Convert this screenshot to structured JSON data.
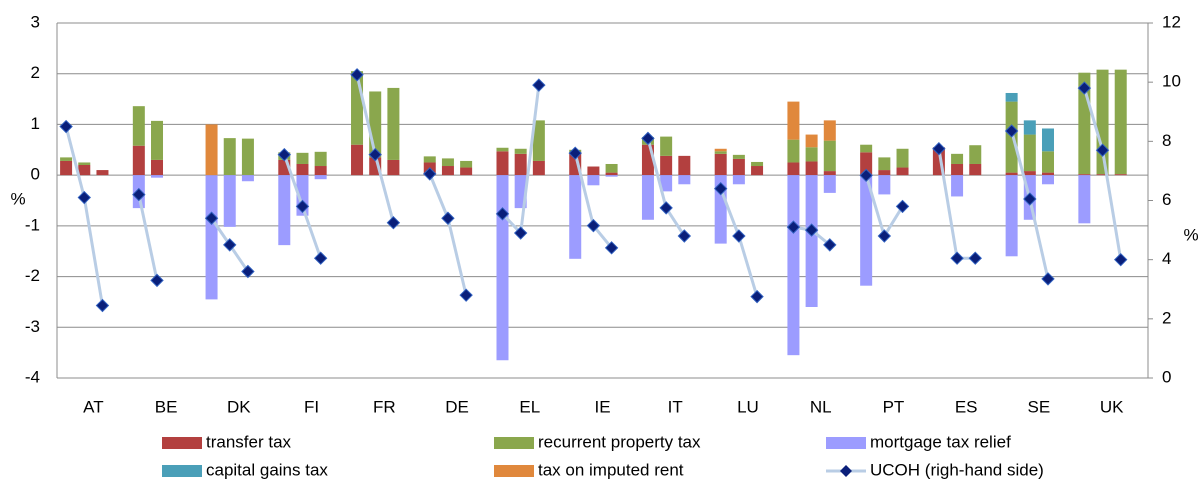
{
  "chart_data": {
    "type": "bar",
    "categories": [
      null,
      "AT",
      null,
      null,
      "BE",
      null,
      null,
      "DK",
      null,
      null,
      "FI",
      null,
      null,
      "FR",
      null,
      null,
      "DE",
      null,
      null,
      "EL",
      null,
      null,
      "IE",
      null,
      null,
      "IT",
      null,
      null,
      "LU",
      null,
      null,
      "NL",
      null,
      null,
      "PT",
      null,
      null,
      "ES",
      null,
      null,
      "SE",
      null,
      null,
      "UK",
      null
    ],
    "series": [
      {
        "name": "transfer tax",
        "color": "#b3403f",
        "values": [
          0.28,
          0.2,
          0.1,
          0.58,
          0.3,
          0,
          0,
          0,
          0,
          0.3,
          0.22,
          0.18,
          0.6,
          0.35,
          0.3,
          0.25,
          0.18,
          0.15,
          0.47,
          0.42,
          0.28,
          0.45,
          0.17,
          0.05,
          0.6,
          0.38,
          0.38,
          0.42,
          0.32,
          0.18,
          0.25,
          0.27,
          0.08,
          0.45,
          0.1,
          0.15,
          0.55,
          0.22,
          0.22,
          0.05,
          0.08,
          0.05,
          0.02,
          0.02,
          0.02
        ]
      },
      {
        "name": "recurrent property tax",
        "color": "#8aa74d",
        "values": [
          0.07,
          0.05,
          0,
          0.78,
          0.77,
          0,
          0,
          0.73,
          0.72,
          0.15,
          0.22,
          0.28,
          1.45,
          1.3,
          1.42,
          0.12,
          0.15,
          0.13,
          0.07,
          0.1,
          0.8,
          0.05,
          0,
          0.17,
          0.15,
          0.38,
          0,
          0.05,
          0.08,
          0.08,
          0.45,
          0.28,
          0.6,
          0.15,
          0.25,
          0.37,
          0,
          0.2,
          0.37,
          1.4,
          0.72,
          0.42,
          2.0,
          2.06,
          2.06
        ]
      },
      {
        "name": "mortgage tax relief",
        "color": "#9c9cff",
        "values": [
          0,
          0,
          0,
          -0.65,
          -0.05,
          0,
          -2.45,
          -1.02,
          -0.12,
          -1.38,
          -0.8,
          -0.08,
          0,
          0,
          0,
          0,
          0,
          0,
          -3.65,
          -0.65,
          0,
          -1.65,
          -0.2,
          -0.03,
          -0.88,
          -0.32,
          -0.18,
          -1.35,
          -0.18,
          0,
          -3.55,
          -2.6,
          -0.35,
          -2.18,
          -0.38,
          0,
          0,
          -0.42,
          0,
          -1.6,
          -0.88,
          -0.18,
          -0.95,
          0,
          0
        ]
      },
      {
        "name": "capital gains tax",
        "color": "#4a9fb8",
        "values": [
          0,
          0,
          0,
          0,
          0,
          0,
          0,
          0,
          0,
          0,
          0,
          0,
          0,
          0,
          0,
          0,
          0,
          0,
          0,
          0,
          0,
          0,
          0,
          0,
          0,
          0,
          0,
          0,
          0,
          0,
          0,
          0,
          0,
          0,
          0,
          0,
          0,
          0,
          0,
          0.17,
          0.28,
          0.45,
          0,
          0,
          0
        ]
      },
      {
        "name": "tax on imputed rent",
        "color": "#e0883c",
        "values": [
          0,
          0,
          0,
          0,
          0,
          0,
          1.0,
          0,
          0,
          0,
          0,
          0,
          0,
          0,
          0,
          0,
          0,
          0,
          0,
          0,
          0,
          0,
          0,
          0,
          0,
          0,
          0,
          0.05,
          0,
          0,
          0.75,
          0.25,
          0.4,
          0,
          0,
          0,
          0,
          0,
          0,
          0,
          0,
          0,
          0,
          0,
          0
        ]
      },
      {
        "name": "UCOH (righ-hand side)",
        "type": "line",
        "axis": "y2",
        "color": "#b9cde5",
        "marker_color": "#0a1f7a",
        "values": [
          8.5,
          6.1,
          2.45,
          6.2,
          3.3,
          null,
          5.4,
          4.5,
          3.6,
          7.55,
          5.8,
          4.05,
          10.25,
          7.55,
          5.25,
          6.9,
          5.4,
          2.8,
          5.55,
          4.9,
          9.9,
          7.6,
          5.15,
          4.4,
          8.1,
          5.75,
          4.8,
          6.4,
          4.8,
          2.75,
          5.1,
          5.0,
          4.5,
          6.85,
          4.8,
          5.8,
          7.75,
          4.05,
          4.05,
          8.35,
          6.05,
          3.35,
          9.8,
          7.7,
          4.0
        ]
      }
    ],
    "ylabel": "%",
    "y2label": "%",
    "ylim": [
      -4,
      3
    ],
    "yticks": [
      -4,
      -3,
      -2,
      -1,
      0,
      1,
      2,
      3
    ],
    "y2lim": [
      0,
      12
    ],
    "y2ticks": [
      0,
      2,
      4,
      6,
      8,
      10,
      12
    ],
    "grid": true,
    "legend": "bottom"
  }
}
